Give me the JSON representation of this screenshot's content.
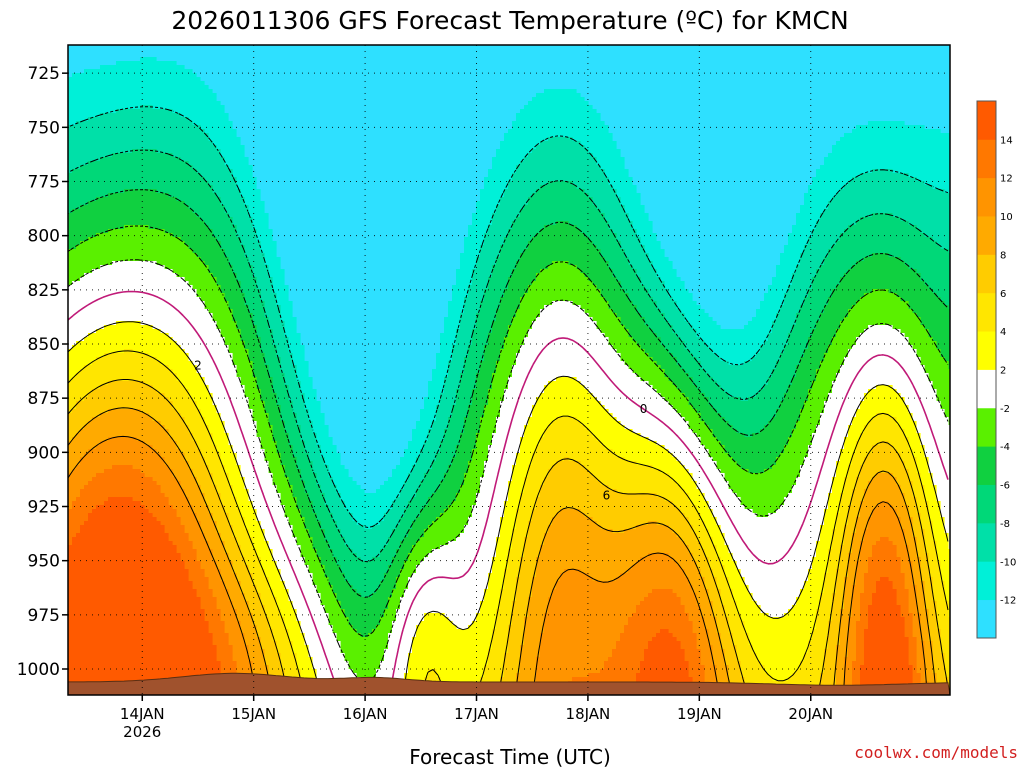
{
  "chart_data": {
    "type": "heatmap",
    "title": "2026011306 GFS Forecast Temperature (ºC) for KMCN",
    "xlabel": "Forecast Time (UTC)",
    "ylabel": "",
    "x_tick_labels": [
      "14JAN",
      "15JAN",
      "16JAN",
      "17JAN",
      "18JAN",
      "19JAN",
      "20JAN"
    ],
    "x_first_tick_year": "2026",
    "y_tick_labels": [
      "725",
      "750",
      "775",
      "800",
      "825",
      "850",
      "875",
      "900",
      "925",
      "950",
      "975",
      "1000"
    ],
    "ylim": [
      1012,
      712
    ],
    "xlim_hours": [
      -16,
      174
    ],
    "colorbar": {
      "levels": [
        -14,
        -12,
        -10,
        -8,
        -6,
        -4,
        -2,
        2,
        4,
        6,
        8,
        10,
        12,
        14,
        16
      ],
      "labels": [
        "-12",
        "-10",
        "-8",
        "-6",
        "-4",
        "-2",
        "2",
        "4",
        "6",
        "8",
        "10",
        "12",
        "14"
      ],
      "colors": [
        "#2ee0ff",
        "#00f0d8",
        "#00e0a8",
        "#00d878",
        "#10d040",
        "#5af000",
        "#ffffff",
        "#ffff00",
        "#ffe600",
        "#ffcc00",
        "#ffaa00",
        "#ff9400",
        "#ff7800",
        "#ff5a00"
      ]
    },
    "contour_levels": [
      "-10",
      "-8",
      "-6",
      "-4",
      "-2",
      "0",
      "2",
      "4",
      "6",
      "8",
      "10"
    ],
    "freezing_line_color": "#c01a78",
    "terrain_color": "#a0522d"
  },
  "credit": "coolwx.com/models"
}
